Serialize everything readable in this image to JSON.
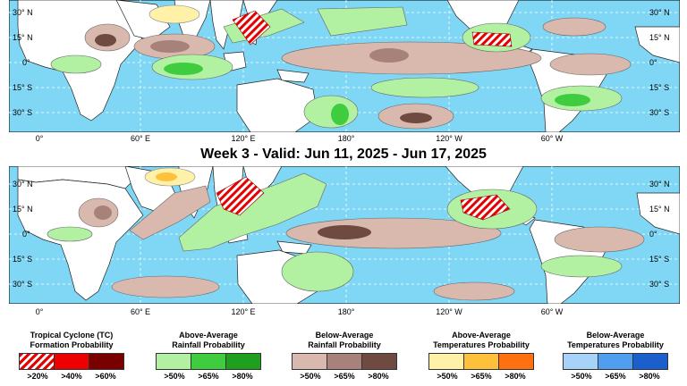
{
  "week3_title": "Week 3 - Valid: Jun 11, 2025 - Jun 17, 2025",
  "lat_labels": [
    "30° N",
    "15° N",
    "0°",
    "15° S",
    "30° S"
  ],
  "lon_labels": [
    "0°",
    "60° E",
    "120° E",
    "180°",
    "120° W",
    "60° W"
  ],
  "legend": [
    {
      "title_line1": "Tropical Cyclone (TC)",
      "title_line2": "Formation Probability",
      "colors": [
        "hatch-red",
        "#ee0000",
        "#7a0000"
      ],
      "labels": [
        ">20%",
        ">40%",
        ">60%"
      ]
    },
    {
      "title_line1": "Above-Average",
      "title_line2": "Rainfall Probability",
      "colors": [
        "#b2f0a2",
        "#3fcc3f",
        "#1ea01e"
      ],
      "labels": [
        ">50%",
        ">65%",
        ">80%"
      ]
    },
    {
      "title_line1": "Below-Average",
      "title_line2": "Rainfall Probability",
      "colors": [
        "#d9b9ae",
        "#a6827a",
        "#6e4a40"
      ],
      "labels": [
        ">50%",
        ">65%",
        ">80%"
      ]
    },
    {
      "title_line1": "Above-Average",
      "title_line2": "Temperatures Probability",
      "colors": [
        "#fff2a8",
        "#ffc13b",
        "#ff7010"
      ],
      "labels": [
        ">50%",
        ">65%",
        ">80%"
      ]
    },
    {
      "title_line1": "Below-Average",
      "title_line2": "Temperatures Probability",
      "colors": [
        "#a6d3f7",
        "#4f9ef0",
        "#1a5fcc"
      ],
      "labels": [
        ">50%",
        ">65%",
        ">80%"
      ]
    }
  ],
  "colors": {
    "ocean": "#7fd7f5",
    "land": "#ffffff"
  }
}
